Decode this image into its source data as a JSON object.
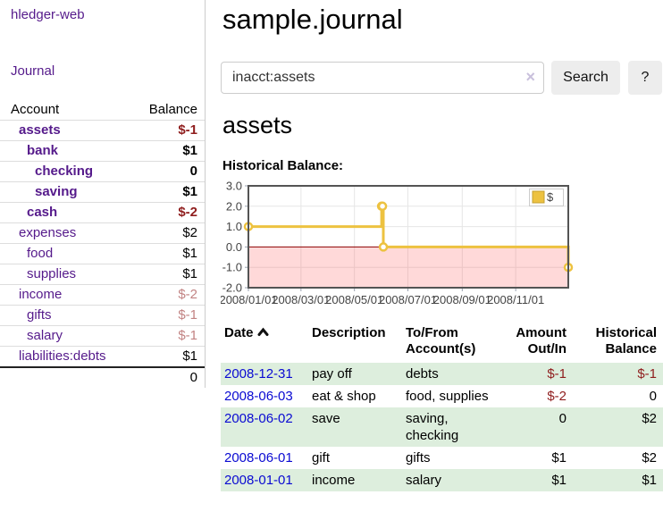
{
  "sidebar": {
    "brand": "hledger-web",
    "nav_journal": "Journal",
    "accounts_table": {
      "headers": [
        "Account",
        "Balance"
      ],
      "rows": [
        {
          "name": "assets",
          "indent": 0,
          "balance": "$-1",
          "bold": true,
          "balance_style": "neg"
        },
        {
          "name": "bank",
          "indent": 1,
          "balance": "$1",
          "bold": true,
          "balance_style": ""
        },
        {
          "name": "checking",
          "indent": 2,
          "balance": "0",
          "bold": true,
          "balance_style": ""
        },
        {
          "name": "saving",
          "indent": 2,
          "balance": "$1",
          "bold": true,
          "balance_style": ""
        },
        {
          "name": "cash",
          "indent": 1,
          "balance": "$-2",
          "bold": true,
          "balance_style": "neg"
        },
        {
          "name": "expenses",
          "indent": 0,
          "balance": "$2",
          "bold": false,
          "balance_style": ""
        },
        {
          "name": "food",
          "indent": 1,
          "balance": "$1",
          "bold": false,
          "balance_style": ""
        },
        {
          "name": "supplies",
          "indent": 1,
          "balance": "$1",
          "bold": false,
          "balance_style": ""
        },
        {
          "name": "income",
          "indent": 0,
          "balance": "$-2",
          "bold": false,
          "balance_style": "negdim"
        },
        {
          "name": "gifts",
          "indent": 1,
          "balance": "$-1",
          "bold": false,
          "balance_style": "negdim"
        },
        {
          "name": "salary",
          "indent": 1,
          "balance": "$-1",
          "bold": false,
          "balance_style": "negdim",
          "link_style": "blue"
        },
        {
          "name": "liabilities:debts",
          "indent": 0,
          "balance": "$1",
          "bold": false,
          "balance_style": ""
        }
      ],
      "total": "0"
    }
  },
  "main": {
    "title": "sample.journal",
    "search": {
      "value": "inacct:assets",
      "clear_glyph": "×",
      "button": "Search",
      "help": "?"
    },
    "account_heading": "assets",
    "chart_label": "Historical Balance:"
  },
  "chart_data": {
    "type": "line",
    "title": "Historical Balance",
    "series": [
      {
        "name": "$",
        "color": "#edc240",
        "step": true,
        "points": [
          {
            "date": "2008-01-01",
            "value": 1
          },
          {
            "date": "2008-06-01",
            "value": 2
          },
          {
            "date": "2008-06-02",
            "value": 2
          },
          {
            "date": "2008-06-03",
            "value": 0
          },
          {
            "date": "2008-12-31",
            "value": -1
          }
        ]
      }
    ],
    "x_ticks": [
      {
        "label": "2008/01/01",
        "date": "2008-01-01"
      },
      {
        "label": "2008/03/01",
        "date": "2008-03-01"
      },
      {
        "label": "2008/05/01",
        "date": "2008-05-01"
      },
      {
        "label": "2008/07/01",
        "date": "2008-07-01"
      },
      {
        "label": "2008/09/01",
        "date": "2008-09-01"
      },
      {
        "label": "2008/11/01",
        "date": "2008-11-01"
      }
    ],
    "y_ticks": [
      3.0,
      2.0,
      1.0,
      0.0,
      -1.0,
      -2.0
    ],
    "xlim": [
      "2008-01-01",
      "2008-12-31"
    ],
    "ylim": [
      -2,
      3
    ],
    "grid": true,
    "legend_position": "top-right",
    "negative_region_fill": "rgba(255,80,80,0.22)",
    "zero_line_color": "#8b0000",
    "legend": {
      "label": "$",
      "swatch_color": "#edc240"
    }
  },
  "register": {
    "headers": {
      "date": "Date",
      "description": "Description",
      "accounts": "To/From Account(s)",
      "amount": "Amount Out/In",
      "balance": "Historical Balance"
    },
    "rows": [
      {
        "date": "2008-12-31",
        "description": "pay off",
        "accounts": "debts",
        "amount": "$-1",
        "balance": "$-1",
        "amount_style": "neg",
        "balance_style": "neg"
      },
      {
        "date": "2008-06-03",
        "description": "eat & shop",
        "accounts": "food, supplies",
        "amount": "$-2",
        "balance": "0",
        "amount_style": "neg",
        "balance_style": ""
      },
      {
        "date": "2008-06-02",
        "description": "save",
        "accounts": "saving, checking",
        "amount": "0",
        "balance": "$2",
        "amount_style": "",
        "balance_style": ""
      },
      {
        "date": "2008-06-01",
        "description": "gift",
        "accounts": "gifts",
        "amount": "$1",
        "balance": "$2",
        "amount_style": "",
        "balance_style": ""
      },
      {
        "date": "2008-01-01",
        "description": "income",
        "accounts": "salary",
        "amount": "$1",
        "balance": "$1",
        "amount_style": "",
        "balance_style": ""
      }
    ]
  }
}
